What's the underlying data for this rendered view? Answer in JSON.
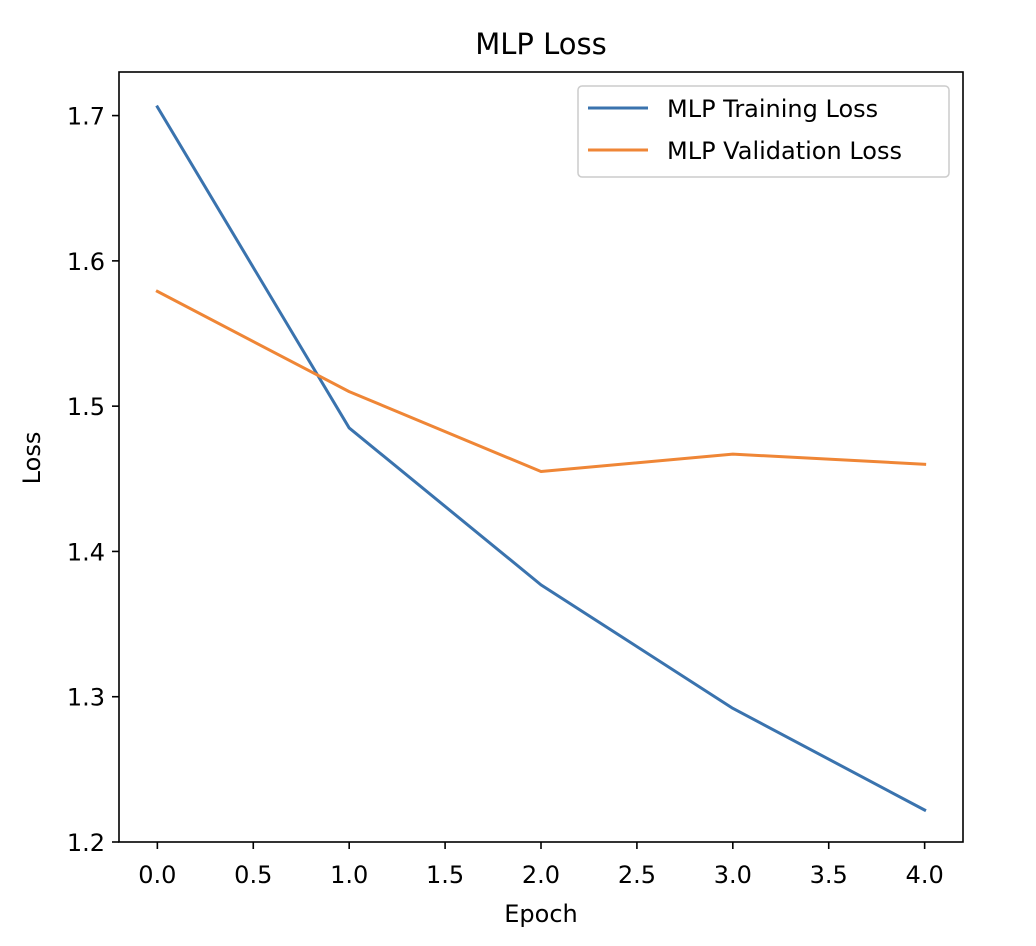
{
  "chart_data": {
    "type": "line",
    "title": "MLP Loss",
    "xlabel": "Epoch",
    "ylabel": "Loss",
    "x": [
      0,
      1,
      2,
      3,
      4
    ],
    "xlim": [
      -0.2,
      4.2
    ],
    "ylim": [
      1.2,
      1.73
    ],
    "xticks": [
      "0.0",
      "0.5",
      "1.0",
      "1.5",
      "2.0",
      "2.5",
      "3.0",
      "3.5",
      "4.0"
    ],
    "xtick_values": [
      0,
      0.5,
      1,
      1.5,
      2,
      2.5,
      3,
      3.5,
      4
    ],
    "yticks": [
      "1.2",
      "1.3",
      "1.4",
      "1.5",
      "1.6",
      "1.7"
    ],
    "ytick_values": [
      1.2,
      1.3,
      1.4,
      1.5,
      1.6,
      1.7
    ],
    "grid": false,
    "legend_position": "top-right",
    "series": [
      {
        "name": "MLP Training Loss",
        "color": "#3a73ae",
        "values": [
          1.706,
          1.485,
          1.377,
          1.292,
          1.222
        ]
      },
      {
        "name": "MLP Validation Loss",
        "color": "#ef8636",
        "values": [
          1.579,
          1.51,
          1.455,
          1.467,
          1.46
        ]
      }
    ]
  }
}
